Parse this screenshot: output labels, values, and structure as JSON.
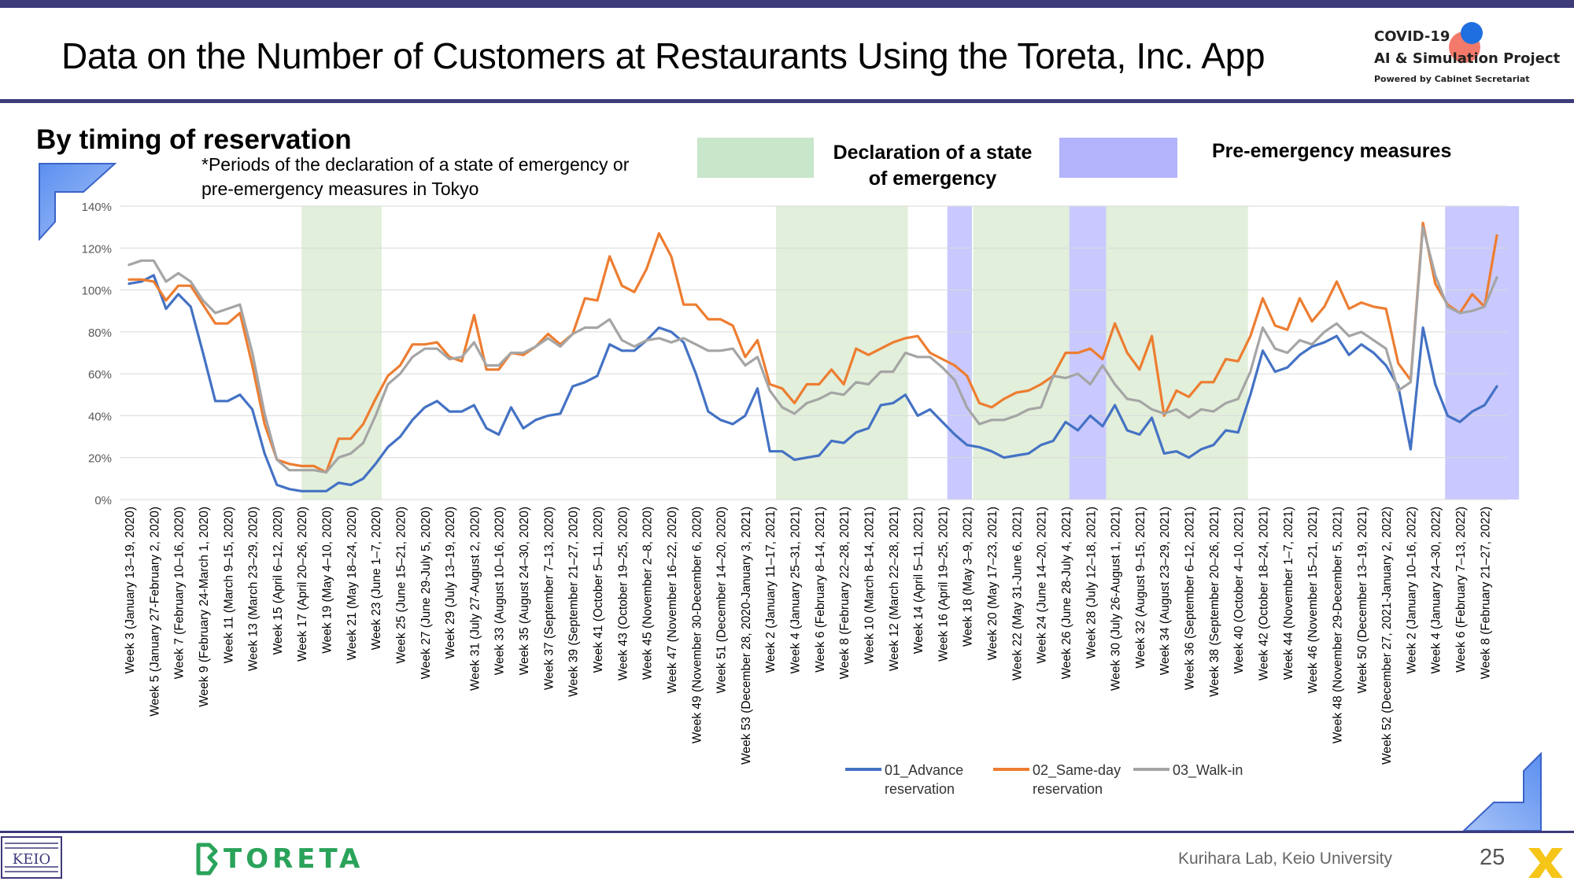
{
  "header": {
    "title": "Data on the Number of Customers at Restaurants Using the Toreta, Inc. App",
    "logo_line1": "COVID-19",
    "logo_line2": "AI & Simulation Project",
    "logo_line3": "Powered by Cabinet Secretariat"
  },
  "section": {
    "subtitle": "By timing of reservation",
    "note_line1": "*Periods of the declaration of a state of emergency or",
    "note_line2": "pre-emergency measures in Tokyo",
    "key_emergency_line1": "Declaration of a state",
    "key_emergency_line2": "of emergency",
    "key_preemergency": "Pre-emergency measures"
  },
  "colors": {
    "advance": "#4472c4",
    "same_day": "#ed7d31",
    "walk_in": "#a5a5a5",
    "emergency_band": "#e2efda",
    "pre_emergency_band": "#c9c9ff",
    "frame": "#3d3b7a"
  },
  "footer": {
    "lab": "Kurihara Lab, Keio University",
    "page": "25",
    "brand": "TORETA",
    "keio_mark": "KEIO"
  },
  "chart_data": {
    "type": "line",
    "ylim": [
      0,
      140
    ],
    "yticks": [
      "0%",
      "20%",
      "40%",
      "60%",
      "80%",
      "100%",
      "120%",
      "140%"
    ],
    "grid": true,
    "legend_position": "bottom",
    "x_labels": [
      "Week 3 (January 13–19, 2020)",
      "Week 5 (January 27-February 2, 2020)",
      "Week 7 (February 10–16, 2020)",
      "Week 9 (February 24-March 1, 2020)",
      "Week 11 (March 9–15, 2020)",
      "Week 13 (March 23–29, 2020)",
      "Week 15 (April 6–12, 2020)",
      "Week 17 (April 20–26, 2020)",
      "Week 19 (May 4–10, 2020)",
      "Week 21 (May 18–24, 2020)",
      "Week 23 (June 1–7, 2020)",
      "Week 25 (June 15–21, 2020)",
      "Week 27 (June 29-July 5, 2020)",
      "Week 29 (July 13–19, 2020)",
      "Week 31 (July 27-August 2, 2020)",
      "Week 33 (August 10–16, 2020)",
      "Week 35 (August 24–30, 2020)",
      "Week 37 (September 7–13, 2020)",
      "Week 39 (September 21–27, 2020)",
      "Week 41 (October 5–11, 2020)",
      "Week 43 (October 19–25, 2020)",
      "Week 45 (November 2–8, 2020)",
      "Week 47 (November 16–22, 2020)",
      "Week 49 (November 30-December 6, 2020)",
      "Week 51 (December 14–20, 2020)",
      "Week 53 (December 28, 2020-January 3, 2021)",
      "Week 2 (January 11–17, 2021)",
      "Week 4 (January 25–31, 2021)",
      "Week 6 (February 8–14, 2021)",
      "Week 8 (February 22–28, 2021)",
      "Week 10 (March 8–14, 2021)",
      "Week 12 (March 22–28, 2021)",
      "Week 14 (April 5–11, 2021)",
      "Week 16 (April 19–25, 2021)",
      "Week 18 (May 3–9, 2021)",
      "Week 20 (May 17–23, 2021)",
      "Week 22 (May 31-June 6, 2021)",
      "Week 24 (June 14–20, 2021)",
      "Week 26 (June 28-July 4, 2021)",
      "Week 28 (July 12–18, 2021)",
      "Week 30 (July 26-August 1, 2021)",
      "Week 32 (August 9–15, 2021)",
      "Week 34 (August 23–29, 2021)",
      "Week 36 (September 6–12, 2021)",
      "Week 38 (September 20–26, 2021)",
      "Week 40 (October 4–10, 2021)",
      "Week 42 (October 18–24, 2021)",
      "Week 44 (November 1–7, 2021)",
      "Week 46 (November 15–21, 2021)",
      "Week 48 (November 29-December 5, 2021)",
      "Week 50 (December 13–19, 2021)",
      "Week 52 (December 27, 2021-January 2, 2022)",
      "Week 2 (January 10–16, 2022)",
      "Week 4 (January 24–30, 2022)",
      "Week 6 (February 7–13, 2022)",
      "Week 8 (February 21–27, 2022)"
    ],
    "bands": [
      {
        "kind": "emergency",
        "from_week": 14,
        "to_week": 20.5
      },
      {
        "kind": "emergency",
        "from_week": 52.5,
        "to_week": 63.2
      },
      {
        "kind": "pre_emergency",
        "from_week": 66.4,
        "to_week": 68.4
      },
      {
        "kind": "emergency",
        "from_week": 68.5,
        "to_week": 76.3
      },
      {
        "kind": "pre_emergency",
        "from_week": 76.3,
        "to_week": 79.3
      },
      {
        "kind": "emergency",
        "from_week": 79.3,
        "to_week": 90.8
      },
      {
        "kind": "pre_emergency",
        "from_week": 106.8,
        "to_week": 112.8
      }
    ],
    "series": [
      {
        "name": "01_Advance reservation",
        "color": "#4472c4",
        "values": [
          103,
          104,
          107,
          91,
          98,
          92,
          70,
          47,
          47,
          50,
          43,
          22,
          7,
          5,
          4,
          4,
          4,
          8,
          7,
          10,
          17,
          25,
          30,
          38,
          44,
          47,
          42,
          42,
          45,
          34,
          31,
          44,
          34,
          38,
          40,
          41,
          54,
          56,
          59,
          74,
          71,
          71,
          76,
          82,
          80,
          75,
          60,
          42,
          38,
          36,
          40,
          53,
          23,
          23,
          19,
          20,
          21,
          28,
          27,
          32,
          34,
          45,
          46,
          50,
          40,
          43,
          37,
          31,
          26,
          25,
          23,
          20,
          21,
          22,
          26,
          28,
          37,
          33,
          40,
          35,
          45,
          33,
          31,
          39,
          22,
          23,
          20,
          24,
          26,
          33,
          32,
          50,
          71,
          61,
          63,
          69,
          73,
          75,
          78,
          69,
          74,
          70,
          64,
          54,
          24,
          82,
          55,
          40,
          37,
          42,
          45,
          54
        ]
      },
      {
        "name": "02_Same-day reservation",
        "color": "#ed7d31",
        "values": [
          105,
          105,
          104,
          95,
          102,
          102,
          93,
          84,
          84,
          89,
          64,
          36,
          19,
          17,
          16,
          16,
          13,
          29,
          29,
          36,
          48,
          59,
          64,
          74,
          74,
          75,
          68,
          66,
          88,
          62,
          62,
          70,
          69,
          73,
          79,
          74,
          79,
          96,
          95,
          116,
          102,
          99,
          110,
          127,
          116,
          93,
          93,
          86,
          86,
          83,
          68,
          76,
          55,
          53,
          46,
          55,
          55,
          62,
          55,
          72,
          69,
          72,
          75,
          77,
          78,
          70,
          67,
          64,
          59,
          46,
          44,
          48,
          51,
          52,
          55,
          59,
          70,
          70,
          72,
          67,
          84,
          70,
          62,
          78,
          40,
          52,
          49,
          56,
          56,
          67,
          66,
          78,
          96,
          83,
          81,
          96,
          85,
          92,
          104,
          91,
          94,
          92,
          91,
          65,
          57,
          132,
          103,
          93,
          89,
          98,
          92,
          126
        ]
      },
      {
        "name": "03_Walk-in",
        "color": "#a5a5a5",
        "values": [
          112,
          114,
          114,
          104,
          108,
          104,
          95,
          89,
          91,
          93,
          70,
          41,
          19,
          14,
          14,
          14,
          13,
          20,
          22,
          27,
          40,
          55,
          60,
          68,
          72,
          72,
          67,
          68,
          75,
          64,
          64,
          70,
          70,
          73,
          77,
          73,
          79,
          82,
          82,
          86,
          76,
          73,
          76,
          77,
          75,
          77,
          74,
          71,
          71,
          72,
          64,
          68,
          52,
          44,
          41,
          46,
          48,
          51,
          50,
          56,
          55,
          61,
          61,
          70,
          68,
          68,
          63,
          57,
          44,
          36,
          38,
          38,
          40,
          43,
          44,
          59,
          58,
          60,
          55,
          64,
          55,
          48,
          47,
          43,
          41,
          43,
          39,
          43,
          42,
          46,
          48,
          61,
          82,
          72,
          70,
          76,
          74,
          80,
          84,
          78,
          80,
          76,
          72,
          52,
          56,
          130,
          107,
          92,
          89,
          90,
          92,
          106
        ]
      }
    ]
  }
}
